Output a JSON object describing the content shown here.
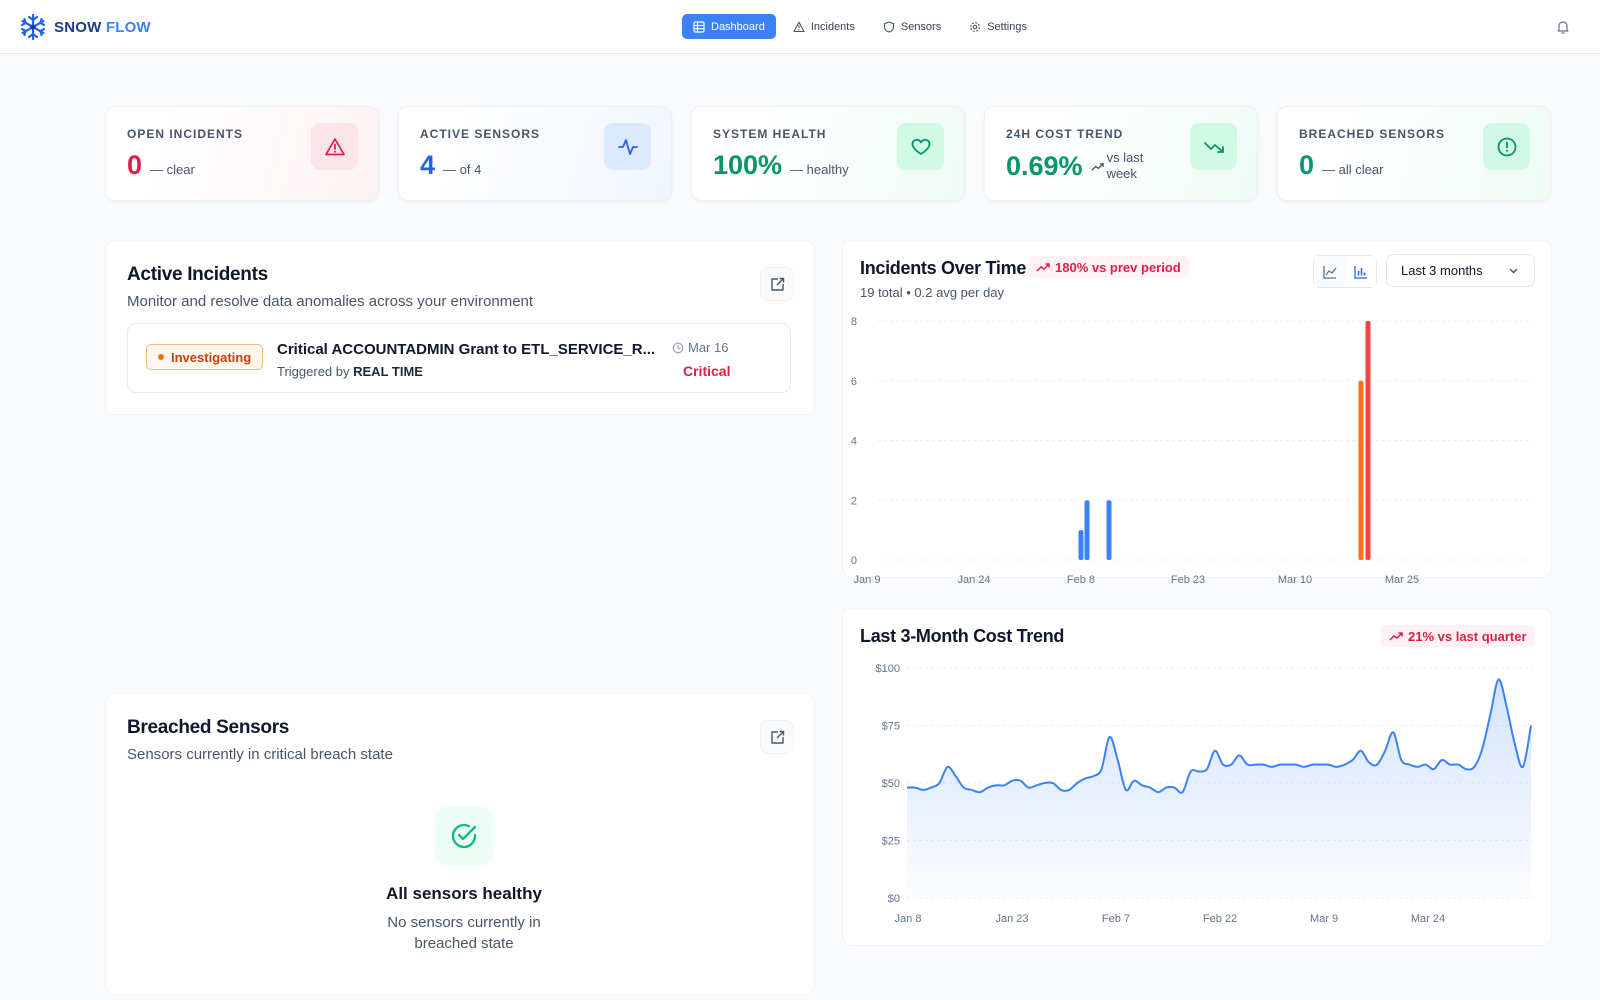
{
  "app": {
    "brand_part1": "SNOW",
    "brand_part2": "FLOW",
    "brand_icon": "snowflake-icon"
  },
  "nav": [
    {
      "label": "Dashboard",
      "icon": "grid-icon",
      "active": true
    },
    {
      "label": "Incidents",
      "icon": "warning-icon",
      "active": false
    },
    {
      "label": "Sensors",
      "icon": "shield-icon",
      "active": false
    },
    {
      "label": "Settings",
      "icon": "gear-icon",
      "active": false
    }
  ],
  "stats": [
    {
      "label": "OPEN INCIDENTS",
      "value": "0",
      "sub": "— clear",
      "icon": "warning-icon",
      "color": "#e11d48"
    },
    {
      "label": "ACTIVE SENSORS",
      "value": "4",
      "sub": "— of 4",
      "icon": "activity-icon",
      "color": "#2563eb"
    },
    {
      "label": "SYSTEM HEALTH",
      "value": "100%",
      "sub": "— healthy",
      "icon": "heart-icon",
      "color": "#059669"
    },
    {
      "label": "24H COST TREND",
      "value": "0.69%",
      "sub": "vs last week",
      "icon": "trending-down-icon",
      "color": "#059669"
    },
    {
      "label": "BREACHED SENSORS",
      "value": "0",
      "sub": "— all clear",
      "icon": "alert-circle-icon",
      "color": "#059669"
    }
  ],
  "active_incidents": {
    "title": "Active Incidents",
    "subtitle": "Monitor and resolve data anomalies across your environment",
    "items": [
      {
        "status": "Investigating",
        "title": "Critical ACCOUNTADMIN Grant to ETL_SERVICE_R...",
        "trigger_prefix": "Triggered by",
        "trigger_source": "REAL TIME",
        "date": "Mar 16",
        "severity": "Critical"
      }
    ]
  },
  "breached_sensors": {
    "title": "Breached Sensors",
    "subtitle": "Sensors currently in critical breach state",
    "empty_title": "All sensors healthy",
    "empty_subtitle": "No sensors currently in breached state"
  },
  "incidents_chart": {
    "title": "Incidents Over Time",
    "trend": "180% vs prev period",
    "meta": "19 total • 0.2 avg per day",
    "range_select": "Last 3 months"
  },
  "cost_chart": {
    "title": "Last 3-Month Cost Trend",
    "trend": "21% vs last quarter"
  },
  "chart_data": [
    {
      "type": "bar",
      "title": "Incidents Over Time",
      "xlabel": "",
      "ylabel": "",
      "ylim": [
        0,
        8
      ],
      "yticks": [
        0,
        2,
        4,
        6,
        8
      ],
      "xticks": [
        "Jan 9",
        "Jan 24",
        "Feb 8",
        "Feb 23",
        "Mar 10",
        "Mar 25"
      ],
      "grid": true,
      "x": [
        "Feb 5",
        "Feb 6",
        "Feb 9",
        "Mar 15",
        "Mar 16"
      ],
      "values": [
        1,
        2,
        2,
        6,
        8
      ],
      "colors": [
        "#3b82f6",
        "#3b82f6",
        "#3b82f6",
        "#f97316",
        "#ef4444"
      ]
    },
    {
      "type": "area",
      "title": "Last 3-Month Cost Trend",
      "xlabel": "",
      "ylabel": "",
      "ylim": [
        0,
        100
      ],
      "yticks": [
        "$0",
        "$25",
        "$50",
        "$75",
        "$100"
      ],
      "xticks": [
        "Jan 8",
        "Jan 23",
        "Feb 7",
        "Feb 22",
        "Mar 9",
        "Mar 24"
      ],
      "grid": true,
      "start": "Jan 4",
      "x_step_days": 1,
      "values": [
        48,
        48,
        47,
        48,
        50,
        57,
        53,
        48,
        47,
        46,
        48,
        49,
        49,
        51,
        51,
        48,
        49,
        50,
        50,
        47,
        47,
        50,
        52,
        53,
        56,
        70,
        60,
        47,
        51,
        49,
        48,
        46,
        48,
        48,
        46,
        55,
        55,
        56,
        64,
        58,
        58,
        62,
        58,
        58,
        58,
        57,
        58,
        58,
        58,
        57,
        58,
        58,
        58,
        57,
        58,
        60,
        64,
        59,
        58,
        64,
        72,
        60,
        58,
        57,
        58,
        56,
        60,
        58,
        58,
        56,
        57,
        65,
        80,
        95,
        83,
        67,
        57,
        75
      ]
    }
  ]
}
